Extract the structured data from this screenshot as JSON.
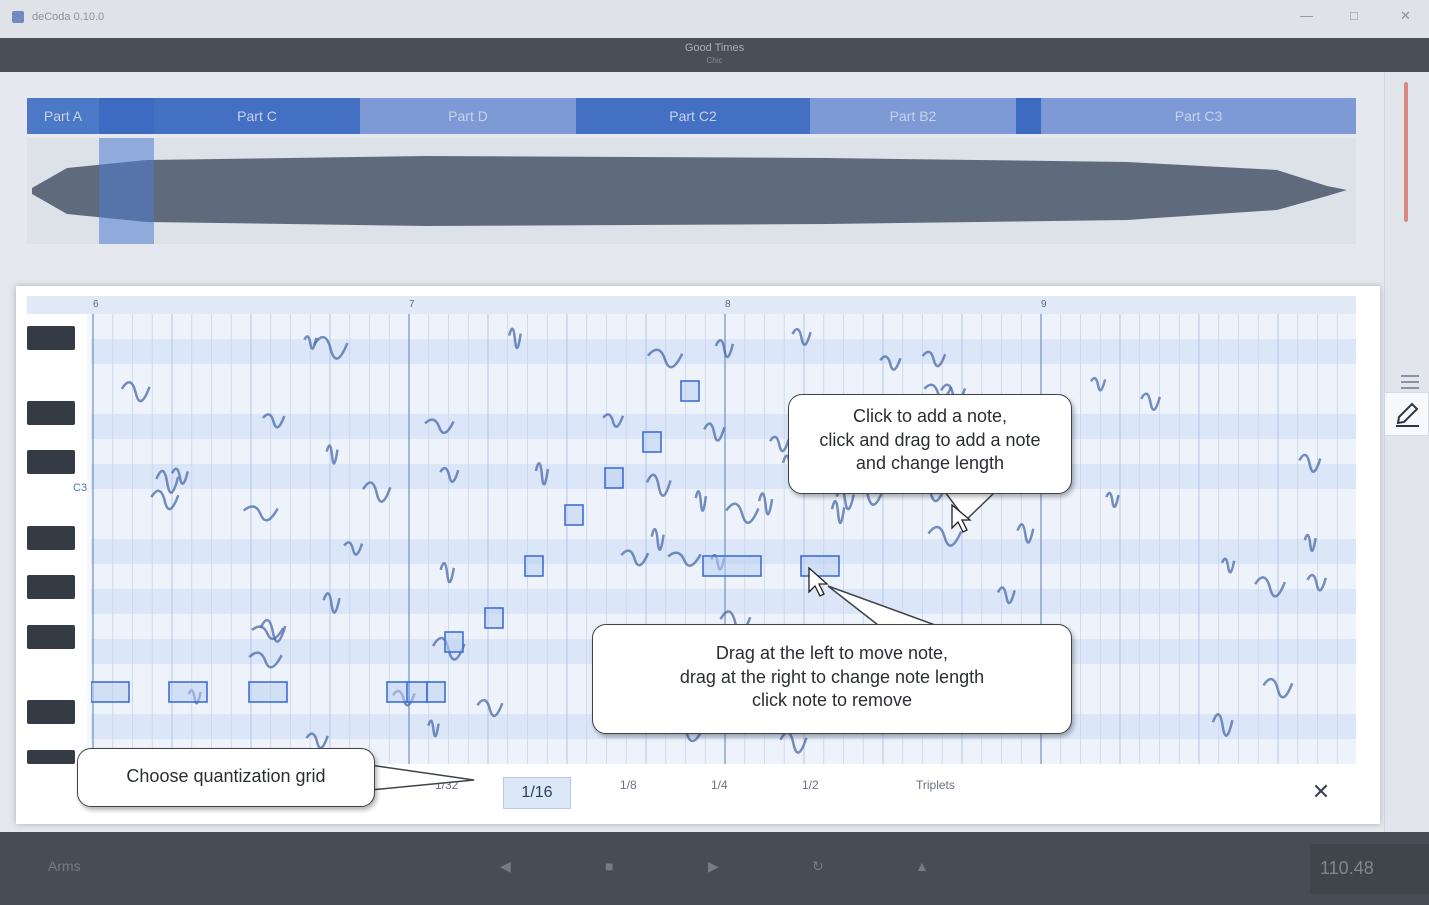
{
  "colors": {
    "accent": "#3f6fd6",
    "selected_grid": "#dce7f8",
    "parts_blue": "#4b74c5",
    "dark_key": "#353b45"
  },
  "window": {
    "app_title": "deCoda 0.10.0",
    "minimize_icon": "minimize-icon",
    "maximize_icon": "maximize-icon",
    "close_icon": "close-icon"
  },
  "song": {
    "title": "Good Times",
    "subtitle": "Chic"
  },
  "parts": [
    "Part A",
    "Part C",
    "Part D",
    "Part C2",
    "Part B2",
    "Part C3"
  ],
  "bottom_bar": {
    "track_label": "Arms",
    "time": "110.48"
  },
  "piano_roll": {
    "bar_numbers": [
      "6",
      "7",
      "8",
      "9"
    ],
    "key_label": "C3"
  },
  "quantization": {
    "options": [
      "1/32",
      "1/16",
      "1/8",
      "1/4",
      "1/2",
      "Triplets"
    ],
    "selected": "1/16",
    "close_icon": "close-icon"
  },
  "callouts": {
    "add_note": [
      "Click to add a note,",
      "click and drag to add a note",
      "and change length"
    ],
    "move_note": [
      "Drag at the left to move note,",
      "drag at the right to change note length",
      "click note to remove"
    ],
    "grid": "Choose quantization grid"
  },
  "right_panel": {
    "pencil_icon": "pencil-icon",
    "list_icon": "list-icon"
  }
}
